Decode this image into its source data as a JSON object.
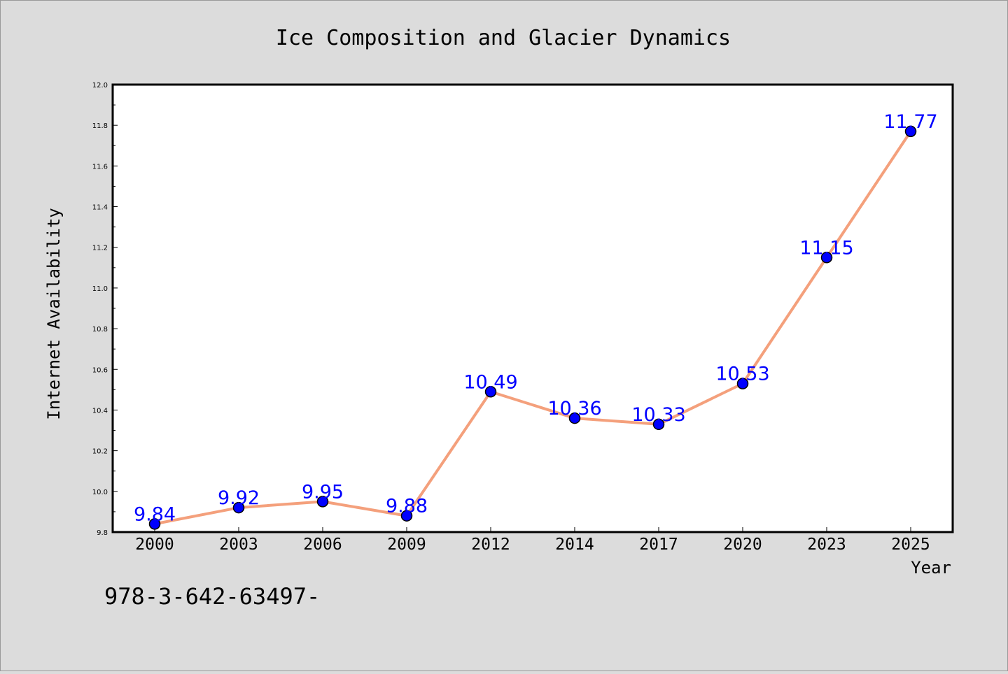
{
  "chart_data": {
    "type": "line",
    "title": "Ice Composition and Glacier Dynamics",
    "xlabel": "Year",
    "ylabel": "Internet Availability",
    "categories": [
      "2000",
      "2003",
      "2006",
      "2009",
      "2012",
      "2014",
      "2017",
      "2020",
      "2023",
      "2025"
    ],
    "values": [
      9.84,
      9.92,
      9.95,
      9.88,
      10.49,
      10.36,
      10.33,
      10.53,
      11.15,
      11.77
    ],
    "data_labels": [
      "9.84",
      "9.92",
      "9.95",
      "9.88",
      "10.49",
      "10.36",
      "10.33",
      "10.53",
      "11.15",
      "11.77"
    ],
    "ylim": [
      9.8,
      12.0
    ],
    "y_ticks": [
      "9.8",
      "10.0",
      "10.2",
      "10.4",
      "10.6",
      "10.8",
      "11.0",
      "11.2",
      "11.4",
      "11.6",
      "11.8",
      "12.0"
    ],
    "grid": false,
    "legend": "none",
    "colors": {
      "line": "#f4a07c",
      "marker": "#0000ff",
      "data_label": "#0000ff",
      "plot_background": "#ffffff",
      "figure_background": "#dcdcdc"
    }
  },
  "footer": {
    "text": "978-3-642-63497-"
  }
}
